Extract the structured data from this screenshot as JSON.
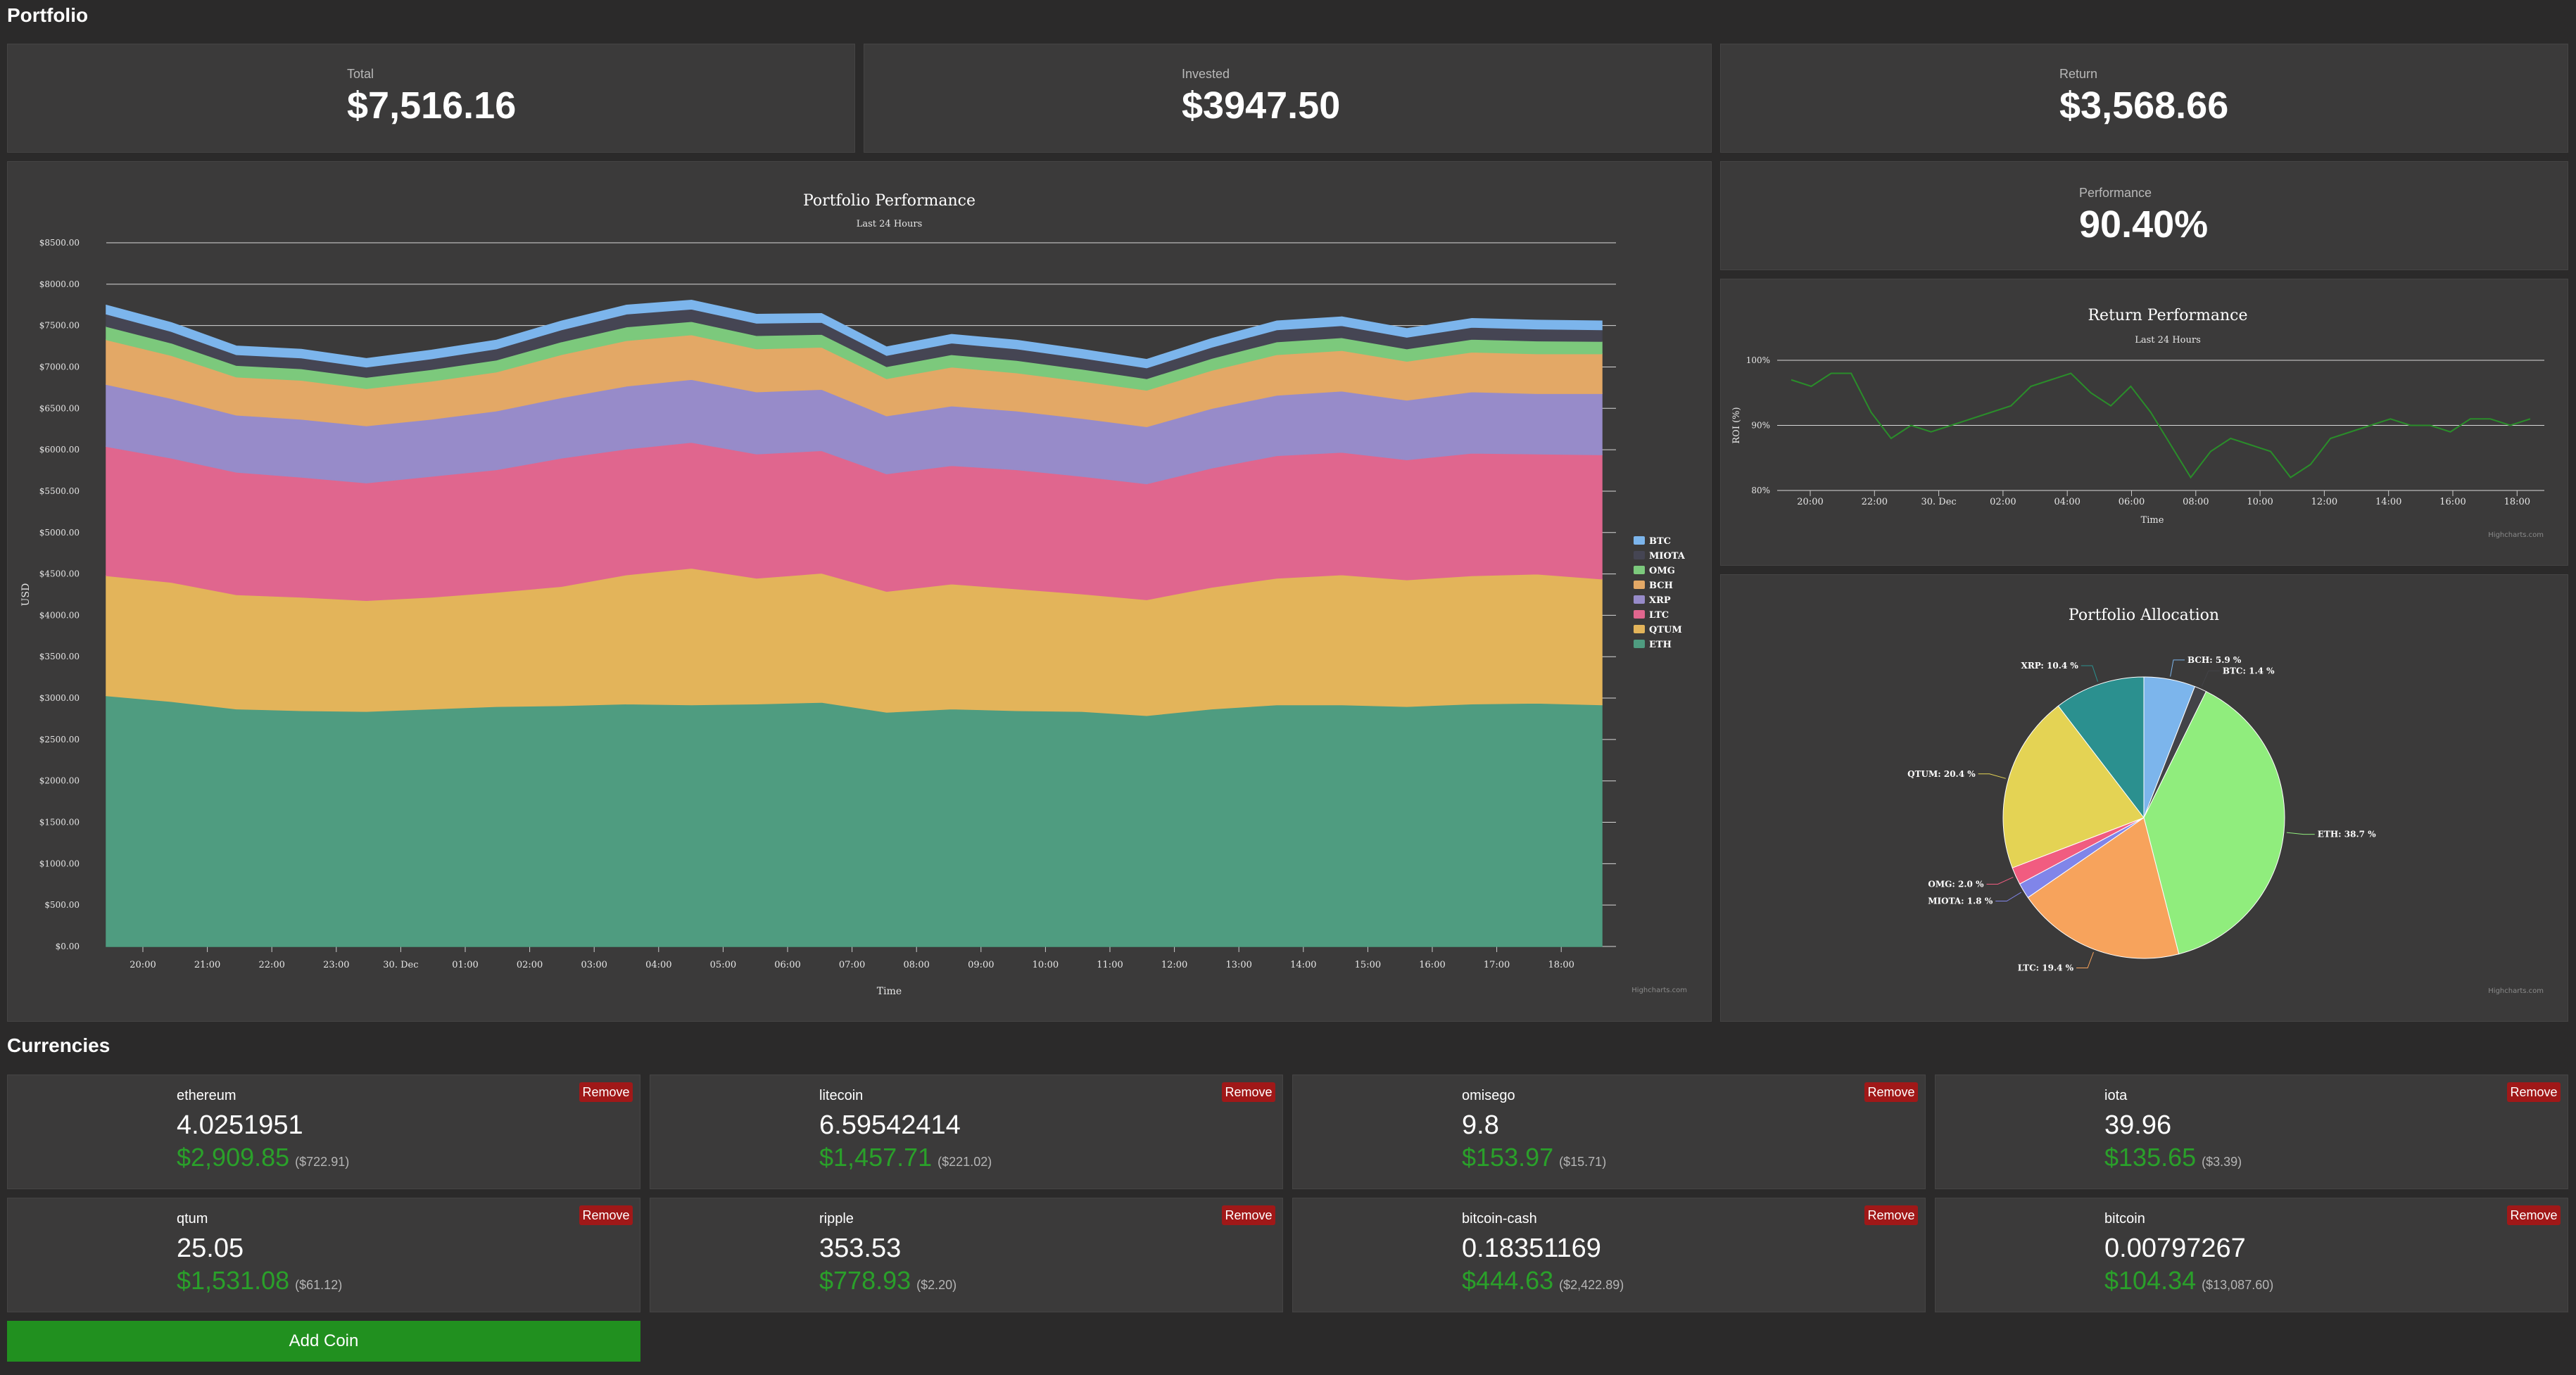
{
  "page": {
    "title": "Portfolio",
    "currencies_title": "Currencies"
  },
  "stats": {
    "total": {
      "label": "Total",
      "value": "$7,516.16"
    },
    "invested": {
      "label": "Invested",
      "value": "$3947.50"
    },
    "return": {
      "label": "Return",
      "value": "$3,568.66"
    },
    "performance": {
      "label": "Performance",
      "value": "90.40%"
    }
  },
  "credits": "Highcharts.com",
  "chart_data": [
    {
      "type": "area",
      "title": "Portfolio Performance",
      "subtitle": "Last 24 Hours",
      "xlabel": "Time",
      "ylabel": "USD",
      "ylim": [
        0,
        8500
      ],
      "yticks": [
        "$0.00",
        "$500.00",
        "$1000.00",
        "$1500.00",
        "$2000.00",
        "$2500.00",
        "$3000.00",
        "$3500.00",
        "$4000.00",
        "$4500.00",
        "$5000.00",
        "$5500.00",
        "$6000.00",
        "$6500.00",
        "$7000.00",
        "$7500.00",
        "$8000.00",
        "$8500.00"
      ],
      "xticks": [
        "20:00",
        "21:00",
        "22:00",
        "23:00",
        "30. Dec",
        "01:00",
        "02:00",
        "03:00",
        "04:00",
        "05:00",
        "06:00",
        "07:00",
        "08:00",
        "09:00",
        "10:00",
        "11:00",
        "12:00",
        "13:00",
        "14:00",
        "15:00",
        "16:00",
        "17:00",
        "18:00"
      ],
      "x": [
        "19:30",
        "20:30",
        "21:30",
        "22:30",
        "23:30",
        "00:30",
        "01:30",
        "02:30",
        "03:30",
        "04:30",
        "05:30",
        "06:30",
        "07:30",
        "08:30",
        "09:30",
        "10:30",
        "11:30",
        "12:30",
        "13:30",
        "14:30",
        "15:30",
        "16:30",
        "17:30",
        "18:30"
      ],
      "stacking": "normal",
      "series": [
        {
          "name": "ETH",
          "color": "#4f9c80",
          "values": [
            3030,
            2960,
            2870,
            2850,
            2840,
            2870,
            2900,
            2910,
            2930,
            2920,
            2930,
            2950,
            2830,
            2870,
            2850,
            2840,
            2790,
            2870,
            2920,
            2920,
            2900,
            2930,
            2940,
            2920
          ]
        },
        {
          "name": "QTUM",
          "color": "#e3b45a",
          "values": [
            1450,
            1440,
            1380,
            1370,
            1340,
            1350,
            1380,
            1440,
            1560,
            1650,
            1520,
            1560,
            1460,
            1510,
            1470,
            1420,
            1400,
            1470,
            1530,
            1570,
            1530,
            1550,
            1560,
            1520
          ]
        },
        {
          "name": "LTC",
          "color": "#e0668e",
          "values": [
            1560,
            1500,
            1480,
            1450,
            1420,
            1460,
            1480,
            1550,
            1520,
            1520,
            1500,
            1480,
            1420,
            1430,
            1440,
            1420,
            1400,
            1440,
            1480,
            1480,
            1450,
            1480,
            1450,
            1500
          ]
        },
        {
          "name": "XRP",
          "color": "#978bc9",
          "values": [
            750,
            720,
            690,
            700,
            690,
            690,
            710,
            730,
            760,
            760,
            750,
            740,
            700,
            720,
            710,
            700,
            690,
            720,
            730,
            740,
            720,
            740,
            730,
            740
          ]
        },
        {
          "name": "BCH",
          "color": "#e3a866",
          "values": [
            540,
            520,
            460,
            470,
            450,
            460,
            470,
            520,
            550,
            540,
            520,
            510,
            450,
            470,
            460,
            450,
            440,
            460,
            490,
            490,
            470,
            480,
            480,
            480
          ]
        },
        {
          "name": "OMG",
          "color": "#7cc97c",
          "values": [
            160,
            150,
            140,
            140,
            135,
            140,
            145,
            155,
            165,
            160,
            160,
            155,
            145,
            150,
            150,
            145,
            140,
            145,
            155,
            155,
            150,
            155,
            155,
            150
          ]
        },
        {
          "name": "MIOTA",
          "color": "#454553",
          "values": [
            150,
            140,
            130,
            130,
            125,
            130,
            135,
            145,
            155,
            150,
            150,
            145,
            135,
            140,
            140,
            135,
            130,
            135,
            145,
            145,
            140,
            145,
            145,
            140
          ]
        },
        {
          "name": "BTC",
          "color": "#7cb5ec",
          "values": [
            105,
            105,
            102,
            102,
            101,
            102,
            103,
            104,
            106,
            105,
            105,
            104,
            101,
            102,
            102,
            101,
            100,
            102,
            104,
            104,
            103,
            104,
            104,
            104
          ]
        }
      ],
      "legend_order": [
        "BTC",
        "MIOTA",
        "OMG",
        "BCH",
        "XRP",
        "LTC",
        "QTUM",
        "ETH"
      ],
      "legend": "right",
      "grid": true
    },
    {
      "type": "line",
      "title": "Return Performance",
      "subtitle": "Last 24 Hours",
      "xlabel": "Time",
      "ylabel": "ROI (%)",
      "ylim": [
        80,
        100
      ],
      "yticks": [
        "80%",
        "90%",
        "100%"
      ],
      "xticks": [
        "20:00",
        "22:00",
        "30. Dec",
        "02:00",
        "04:00",
        "06:00",
        "08:00",
        "10:00",
        "12:00",
        "14:00",
        "16:00",
        "18:00"
      ],
      "series": [
        {
          "name": "ROI",
          "color": "#2a8d2a",
          "values": [
            97,
            96,
            98,
            98,
            92,
            88,
            90,
            89,
            90,
            91,
            92,
            93,
            96,
            97,
            98,
            95,
            93,
            96,
            92,
            87,
            82,
            86,
            88,
            87,
            86,
            82,
            84,
            88,
            89,
            90,
            91,
            90,
            90,
            89,
            91,
            91,
            90,
            91
          ]
        }
      ],
      "grid": true
    },
    {
      "type": "pie",
      "title": "Portfolio Allocation",
      "slices": [
        {
          "name": "BCH",
          "value": 5.9,
          "color": "#7cb5ec",
          "label": "BCH: 5.9 %"
        },
        {
          "name": "BTC",
          "value": 1.4,
          "color": "#434348",
          "label": "BTC: 1.4 %"
        },
        {
          "name": "ETH",
          "value": 38.7,
          "color": "#90ed7d",
          "label": "ETH: 38.7 %"
        },
        {
          "name": "LTC",
          "value": 19.4,
          "color": "#f7a35c",
          "label": "LTC: 19.4 %"
        },
        {
          "name": "MIOTA",
          "value": 1.8,
          "color": "#8085e9",
          "label": "MIOTA: 1.8 %"
        },
        {
          "name": "OMG",
          "value": 2.0,
          "color": "#f15c80",
          "label": "OMG: 2.0 %"
        },
        {
          "name": "QTUM",
          "value": 20.4,
          "color": "#e4d354",
          "label": "QTUM: 20.4 %"
        },
        {
          "name": "XRP",
          "value": 10.4,
          "color": "#2b908f",
          "label": "XRP: 10.4 %"
        }
      ]
    }
  ],
  "coins": [
    {
      "name": "ethereum",
      "amount": "4.0251951",
      "value": "$2,909.85",
      "price": "($722.91)"
    },
    {
      "name": "litecoin",
      "amount": "6.59542414",
      "value": "$1,457.71",
      "price": "($221.02)"
    },
    {
      "name": "omisego",
      "amount": "9.8",
      "value": "$153.97",
      "price": "($15.71)"
    },
    {
      "name": "iota",
      "amount": "39.96",
      "value": "$135.65",
      "price": "($3.39)"
    },
    {
      "name": "qtum",
      "amount": "25.05",
      "value": "$1,531.08",
      "price": "($61.12)"
    },
    {
      "name": "ripple",
      "amount": "353.53",
      "value": "$778.93",
      "price": "($2.20)"
    },
    {
      "name": "bitcoin-cash",
      "amount": "0.18351169",
      "value": "$444.63",
      "price": "($2,422.89)"
    },
    {
      "name": "bitcoin",
      "amount": "0.00797267",
      "value": "$104.34",
      "price": "($13,087.60)"
    }
  ],
  "buttons": {
    "remove": "Remove",
    "add_coin": "Add Coin"
  }
}
